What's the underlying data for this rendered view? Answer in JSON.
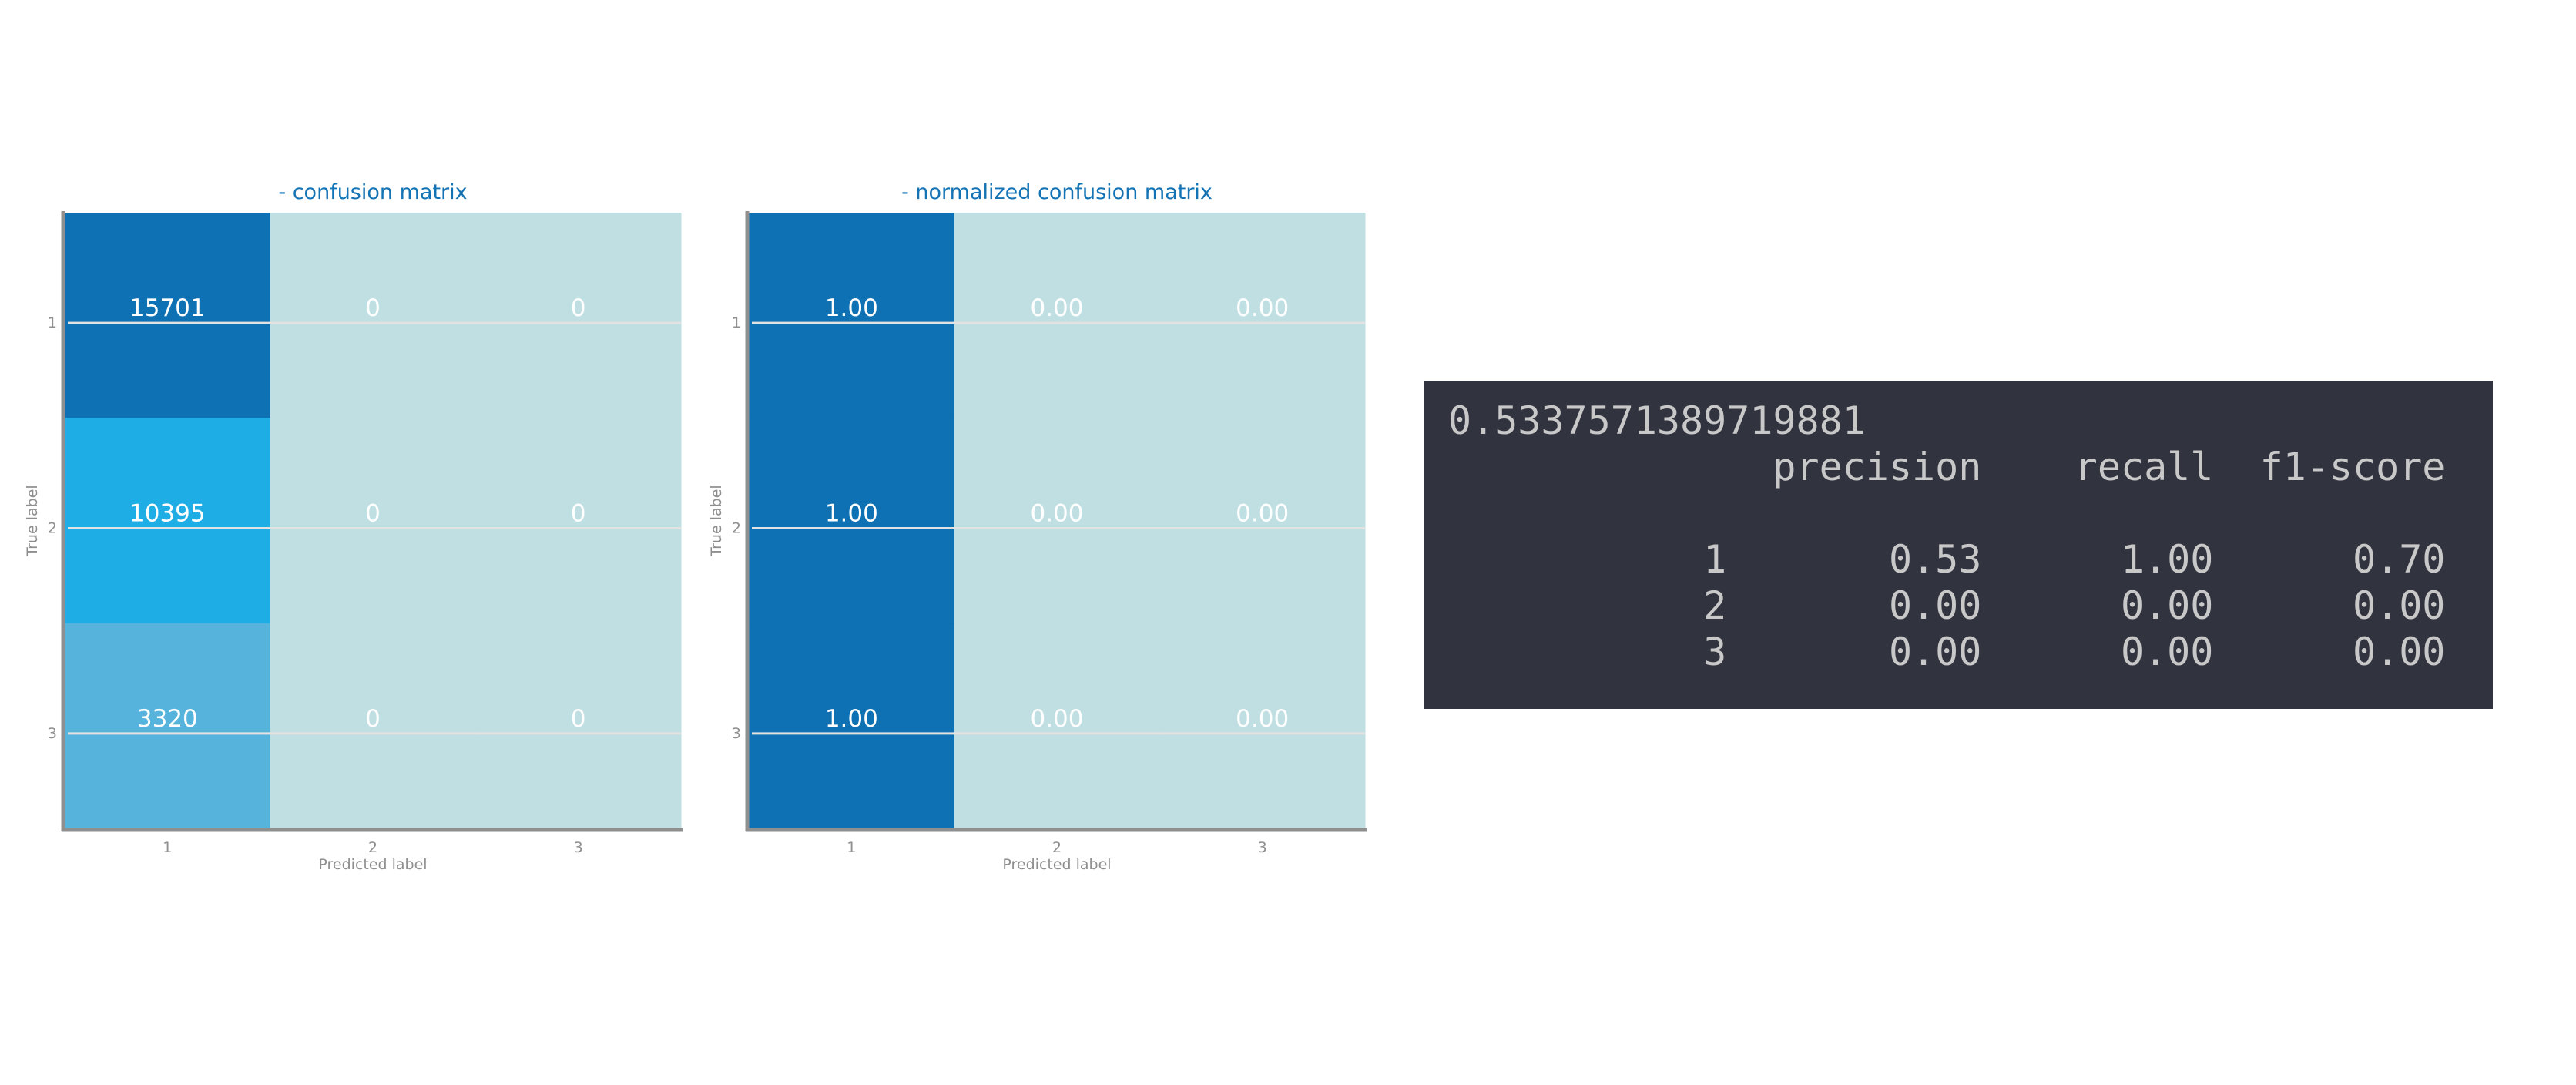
{
  "chart_data": [
    {
      "type": "heatmap",
      "title": "- confusion matrix",
      "xlabel": "Predicted label",
      "ylabel": "True label",
      "x_categories": [
        "1",
        "2",
        "3"
      ],
      "y_categories": [
        "1",
        "2",
        "3"
      ],
      "values": [
        [
          15701,
          0,
          0
        ],
        [
          10395,
          0,
          0
        ],
        [
          3320,
          0,
          0
        ]
      ],
      "cell_labels": [
        [
          "15701",
          "0",
          "0"
        ],
        [
          "10395",
          "0",
          "0"
        ],
        [
          "3320",
          "0",
          "0"
        ]
      ],
      "grid": true
    },
    {
      "type": "heatmap",
      "title": "- normalized confusion matrix",
      "xlabel": "Predicted label",
      "ylabel": "True label",
      "x_categories": [
        "1",
        "2",
        "3"
      ],
      "y_categories": [
        "1",
        "2",
        "3"
      ],
      "values": [
        [
          1.0,
          0.0,
          0.0
        ],
        [
          1.0,
          0.0,
          0.0
        ],
        [
          1.0,
          0.0,
          0.0
        ]
      ],
      "cell_labels": [
        [
          "1.00",
          "0.00",
          "0.00"
        ],
        [
          "1.00",
          "0.00",
          "0.00"
        ],
        [
          "1.00",
          "0.00",
          "0.00"
        ]
      ],
      "grid": true
    }
  ],
  "colors": {
    "title": "#1473b4",
    "tick": "#8f8f8f",
    "axis_line": "#8f8f8f",
    "cell_text": "#ffffff",
    "grid": "#dddddd",
    "cell_zero": "#bfdfe2",
    "cell_low": "#55b3dc",
    "cell_mid": "#1fade6",
    "cell_high": "#0d71b4",
    "report_bg": "#31333f",
    "report_text": "#c8c8c8"
  },
  "report": {
    "lines": [
      "0.5337571389719881",
      "              precision    recall  f1-score",
      "",
      "           1       0.53      1.00      0.70",
      "           2       0.00      0.00      0.00",
      "           3       0.00      0.00      0.00"
    ]
  }
}
